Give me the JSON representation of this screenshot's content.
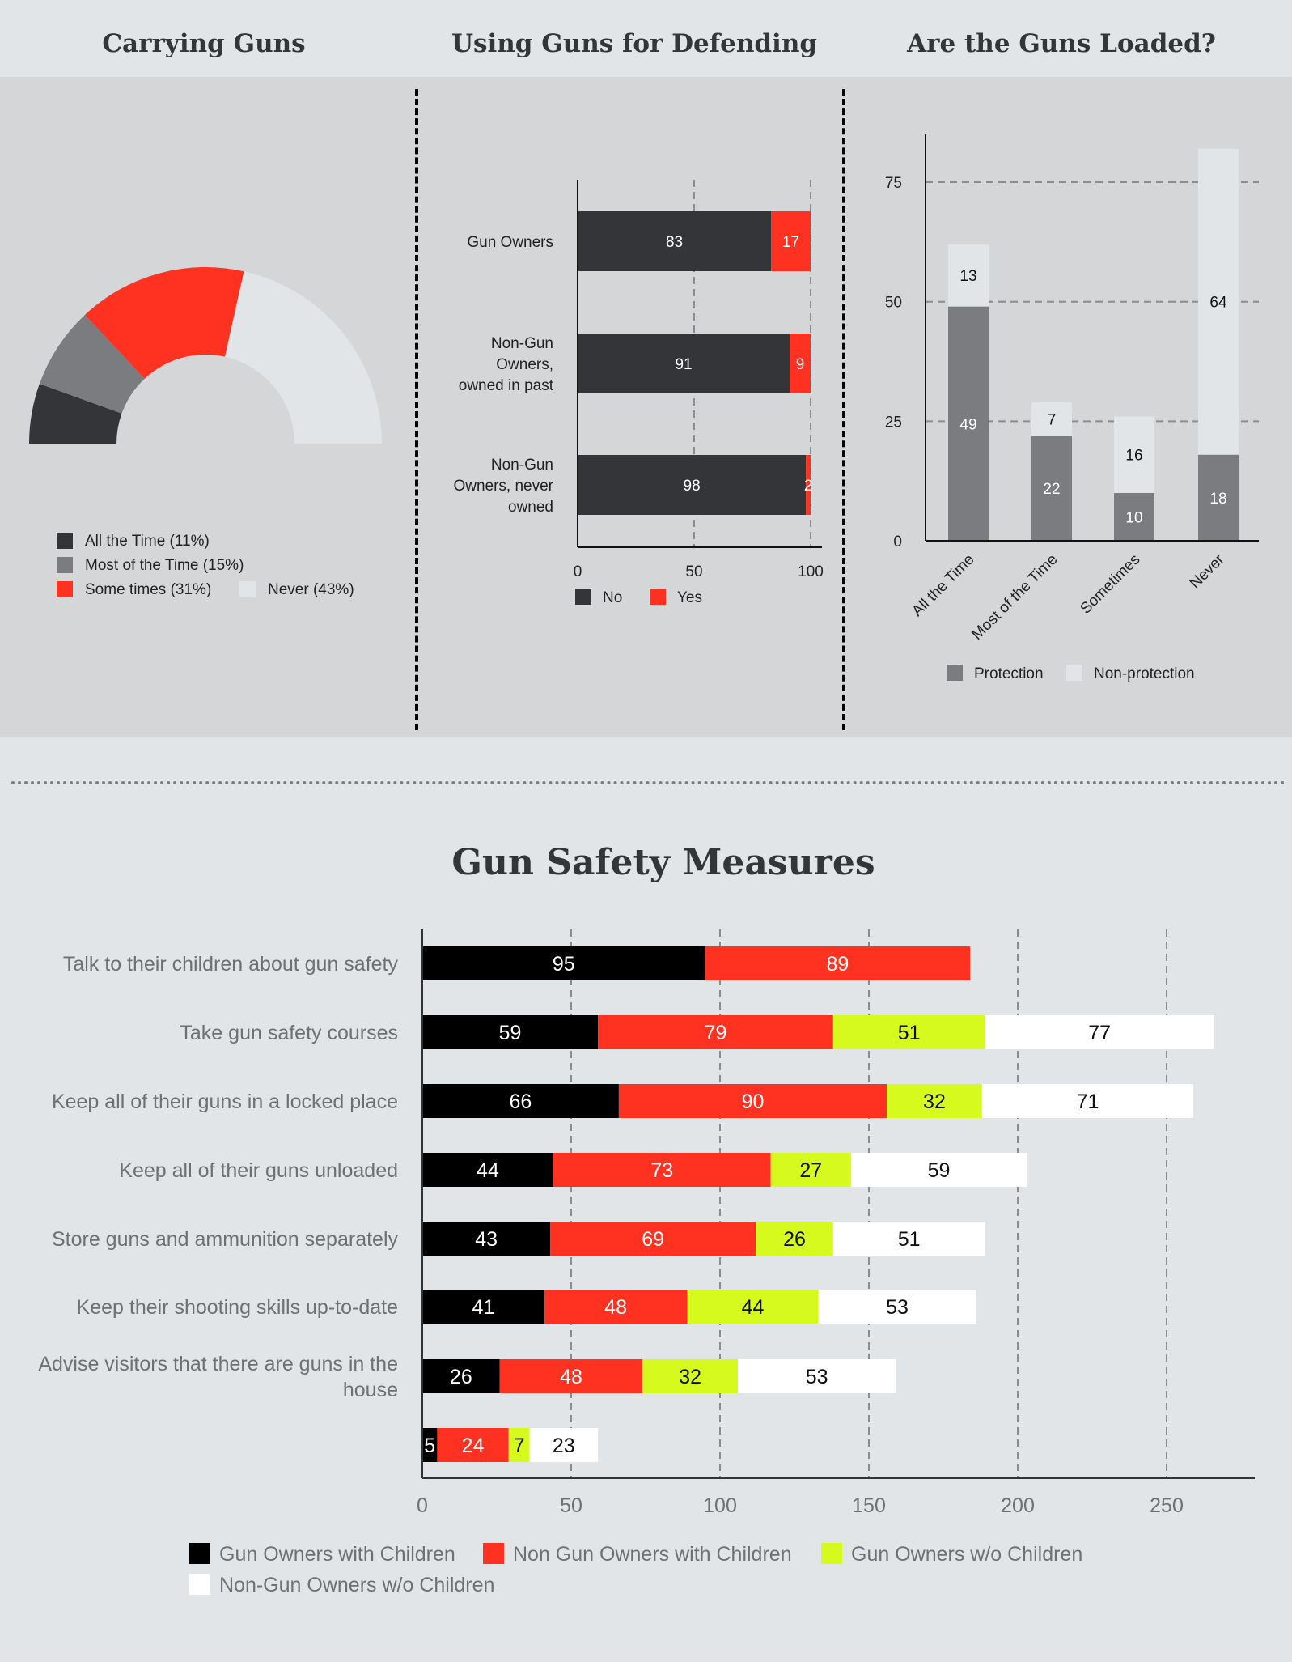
{
  "titles": {
    "carrying": "Carrying Guns",
    "defending": "Using Guns for Defending",
    "loaded": "Are the Guns Loaded?",
    "safety": "Gun Safety Measures"
  },
  "chart_data": [
    {
      "id": "carrying",
      "type": "pie",
      "variant": "semi-donut",
      "title": "Carrying Guns",
      "slices": [
        {
          "label": "All the Time (11%)",
          "value": 11,
          "color": "#333538"
        },
        {
          "label": "Most of the Time (15%)",
          "value": 15,
          "color": "#7b7c80"
        },
        {
          "label": "Some times (31%)",
          "value": 31,
          "color": "#ff3121"
        },
        {
          "label": "Never (43%)",
          "value": 43,
          "color": "#e1e5e7"
        }
      ],
      "legend_position": "bottom"
    },
    {
      "id": "defending",
      "type": "bar",
      "orientation": "horizontal",
      "stacked": true,
      "title": "Using Guns for Defending",
      "categories": [
        [
          "Gun Owners"
        ],
        [
          "Non-Gun",
          "Owners,",
          "owned in past"
        ],
        [
          "Non-Gun",
          "Owners, never",
          "owned"
        ]
      ],
      "series": [
        {
          "name": "No",
          "values": [
            83,
            91,
            98
          ],
          "color": "#333538"
        },
        {
          "name": "Yes",
          "values": [
            17,
            9,
            2
          ],
          "color": "#ff3121"
        }
      ],
      "xlim": [
        0,
        100
      ],
      "xticks": [
        0,
        50,
        100
      ],
      "grid": true,
      "legend_position": "bottom"
    },
    {
      "id": "loaded",
      "type": "bar",
      "orientation": "vertical",
      "stacked": true,
      "title": "Are the Guns Loaded?",
      "categories": [
        "All the Time",
        "Most of the Time",
        "Sometimes",
        "Never"
      ],
      "series": [
        {
          "name": "Protection",
          "values": [
            49,
            22,
            10,
            18
          ],
          "color": "#7b7c80"
        },
        {
          "name": "Non-protection",
          "values": [
            13,
            7,
            16,
            64
          ],
          "color": "#e1e5e7"
        }
      ],
      "ylim": [
        0,
        85
      ],
      "yticks": [
        0,
        25,
        50,
        75
      ],
      "grid": true,
      "legend_position": "bottom"
    },
    {
      "id": "safety",
      "type": "bar",
      "orientation": "horizontal",
      "stacked": true,
      "title": "Gun Safety Measures",
      "categories": [
        [
          "Talk to their children about gun safety"
        ],
        [
          "Take gun safety courses"
        ],
        [
          "Keep all of their guns in a locked place"
        ],
        [
          "Keep all of their guns unloaded"
        ],
        [
          "Store guns and ammunition separately"
        ],
        [
          "Keep their shooting skills up-to-date"
        ],
        [
          "Advise visitors that there are guns in the",
          "house"
        ],
        [
          ""
        ]
      ],
      "series": [
        {
          "name": "Gun Owners with Children",
          "values": [
            95,
            59,
            66,
            44,
            43,
            41,
            26,
            5
          ],
          "color": "#000000"
        },
        {
          "name": "Non Gun Owners with Children",
          "values": [
            89,
            79,
            90,
            73,
            69,
            48,
            48,
            24
          ],
          "color": "#ff3121"
        },
        {
          "name": "Gun Owners w/o Children",
          "values": [
            null,
            51,
            32,
            27,
            26,
            44,
            32,
            7
          ],
          "color": "#d7fa1e"
        },
        {
          "name": "Non-Gun Owners w/o Children",
          "values": [
            null,
            77,
            71,
            59,
            51,
            53,
            53,
            23
          ],
          "color": "#ffffff"
        }
      ],
      "xlim": [
        0,
        280
      ],
      "xticks": [
        0,
        50,
        100,
        150,
        200,
        250
      ],
      "grid": true,
      "legend_position": "bottom"
    }
  ]
}
